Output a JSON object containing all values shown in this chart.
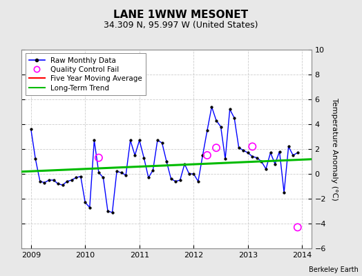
{
  "title": "LANE 1WNW MESONET",
  "subtitle": "34.309 N, 95.997 W (United States)",
  "ylabel": "Temperature Anomaly (°C)",
  "credit": "Berkeley Earth",
  "ylim": [
    -6,
    10
  ],
  "yticks": [
    -6,
    -4,
    -2,
    0,
    2,
    4,
    6,
    8,
    10
  ],
  "xlim": [
    2008.83,
    2014.17
  ],
  "xticks": [
    2009,
    2010,
    2011,
    2012,
    2013,
    2014
  ],
  "bg_color": "#e8e8e8",
  "plot_bg_color": "#ffffff",
  "raw_x": [
    2009.0,
    2009.083,
    2009.167,
    2009.25,
    2009.333,
    2009.417,
    2009.5,
    2009.583,
    2009.667,
    2009.75,
    2009.833,
    2009.917,
    2010.0,
    2010.083,
    2010.167,
    2010.25,
    2010.333,
    2010.417,
    2010.5,
    2010.583,
    2010.667,
    2010.75,
    2010.833,
    2010.917,
    2011.0,
    2011.083,
    2011.167,
    2011.25,
    2011.333,
    2011.417,
    2011.5,
    2011.583,
    2011.667,
    2011.75,
    2011.833,
    2011.917,
    2012.0,
    2012.083,
    2012.167,
    2012.25,
    2012.333,
    2012.417,
    2012.5,
    2012.583,
    2012.667,
    2012.75,
    2012.833,
    2012.917,
    2013.0,
    2013.083,
    2013.167,
    2013.25,
    2013.333,
    2013.417,
    2013.5,
    2013.583,
    2013.667,
    2013.75,
    2013.833,
    2013.917
  ],
  "raw_y": [
    3.6,
    1.2,
    -0.6,
    -0.7,
    -0.5,
    -0.5,
    -0.8,
    -0.9,
    -0.6,
    -0.5,
    -0.3,
    -0.2,
    -2.3,
    -2.7,
    2.7,
    0.1,
    -0.3,
    -3.0,
    -3.1,
    0.2,
    0.1,
    -0.1,
    2.7,
    1.5,
    2.7,
    1.3,
    -0.3,
    0.3,
    2.7,
    2.5,
    1.0,
    -0.4,
    -0.6,
    -0.5,
    0.8,
    0.0,
    0.0,
    -0.6,
    1.5,
    3.5,
    5.4,
    4.3,
    3.8,
    1.2,
    5.2,
    4.5,
    2.1,
    1.9,
    1.7,
    1.4,
    1.3,
    1.0,
    0.4,
    1.7,
    0.8,
    1.8,
    -1.5,
    2.2,
    1.5,
    1.7
  ],
  "qc_fail_x": [
    2010.25,
    2012.25,
    2012.417,
    2013.083,
    2013.917
  ],
  "qc_fail_y": [
    1.3,
    1.5,
    2.1,
    2.2,
    -4.3
  ],
  "trend_x": [
    2008.83,
    2014.17
  ],
  "trend_y": [
    0.18,
    1.18
  ],
  "raw_line_color": "#0000ff",
  "raw_marker_color": "#000000",
  "qc_color": "#ff00ff",
  "trend_color": "#00bb00",
  "moving_avg_color": "#ff0000",
  "grid_color": "#cccccc",
  "title_fontsize": 11,
  "subtitle_fontsize": 9,
  "tick_fontsize": 8,
  "ylabel_fontsize": 8,
  "legend_fontsize": 7.5
}
